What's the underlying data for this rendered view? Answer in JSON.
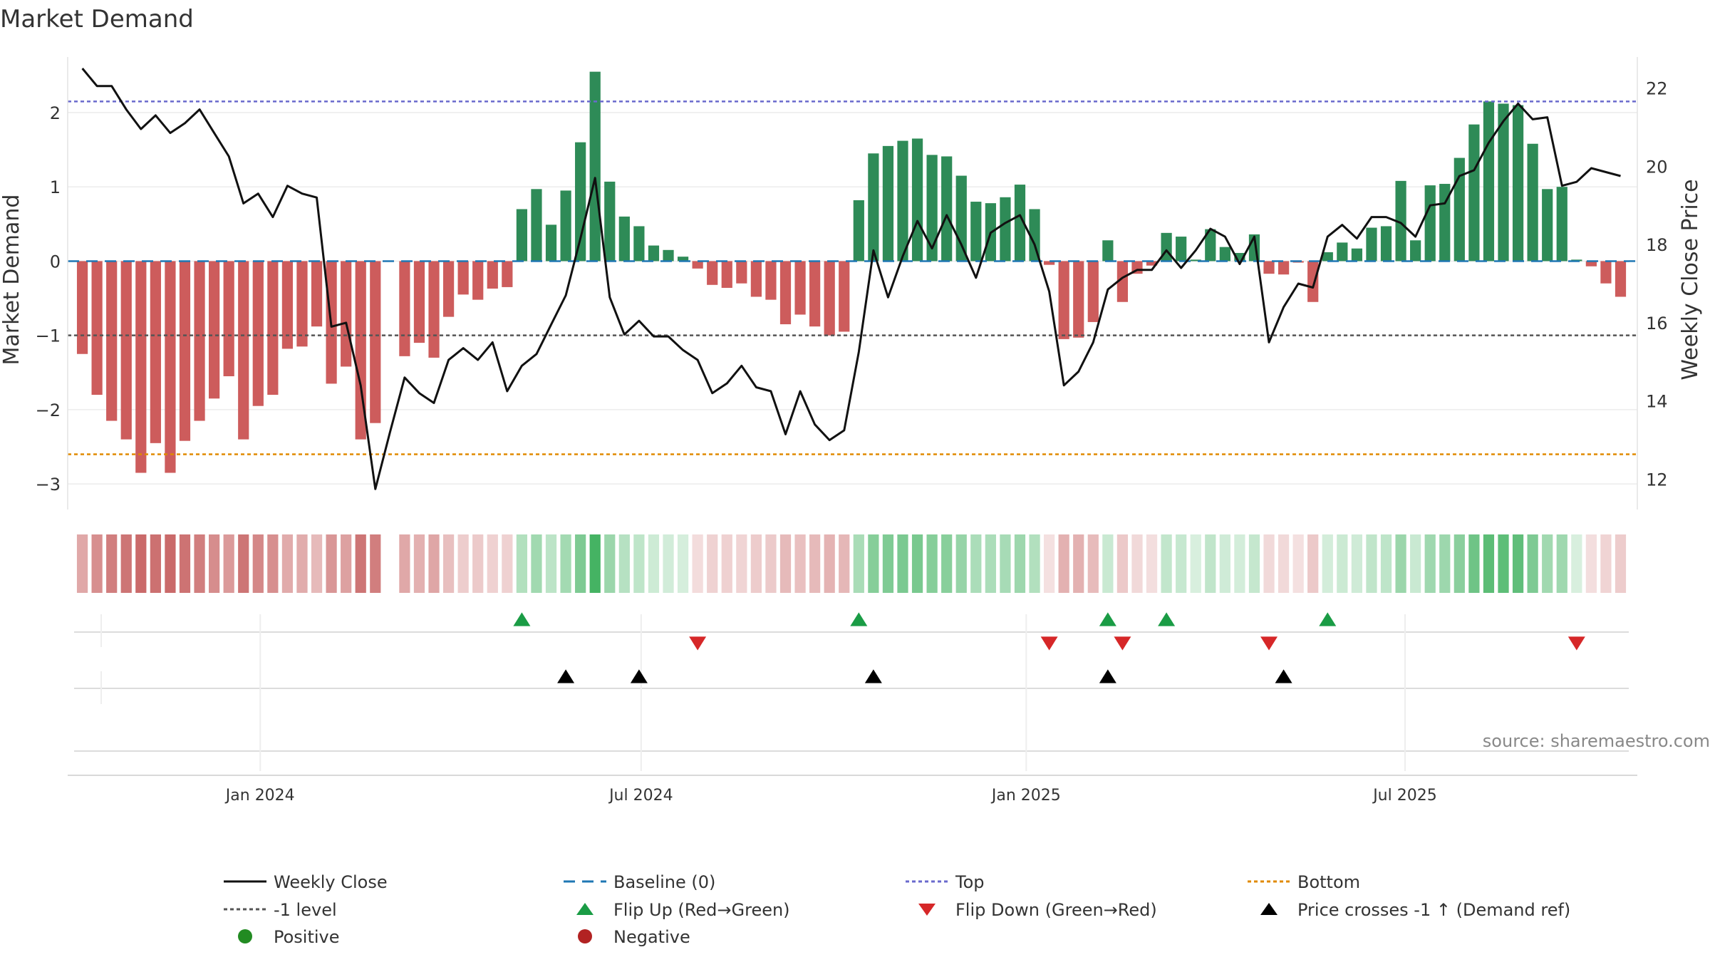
{
  "chart_data": {
    "type": "bar",
    "title": "Market Demand",
    "ylabel": "Market Demand",
    "y2label": "Weekly Close Price",
    "ylim": [
      -3.2,
      2.7
    ],
    "y2lim": [
      11.5,
      22.7
    ],
    "yticks": [
      2,
      1,
      0,
      -1,
      -2,
      -3
    ],
    "y2ticks": [
      22,
      20,
      18,
      16,
      14,
      12
    ],
    "x_range": [
      "2023-10-01",
      "2025-10-20"
    ],
    "x_start_date": "2023-10-08",
    "x_ticks": [
      {
        "date": "2024-01-01",
        "label": "Jan 2024"
      },
      {
        "date": "2024-07-01",
        "label": "Jul 2024"
      },
      {
        "date": "2025-01-01",
        "label": "Jan 2025"
      },
      {
        "date": "2025-07-01",
        "label": "Jul 2025"
      }
    ],
    "reference_lines": {
      "baseline": 0,
      "top": 2.15,
      "minus_one": -1,
      "bottom": -2.6
    },
    "colors": {
      "positive": "#2e8b57",
      "negative": "#cd5c5c",
      "price": "#111111",
      "baseline": "#1f77b4",
      "top": "#6a6acd",
      "bottom": "#e08a00",
      "minus_one": "#555555",
      "flip_up": "#1a9c45",
      "flip_down": "#d62728",
      "cross": "#000000"
    },
    "demand": [
      -1.25,
      -1.8,
      -2.15,
      -2.4,
      -2.85,
      -2.45,
      -2.85,
      -2.42,
      -2.15,
      -1.85,
      -1.55,
      -2.4,
      -1.95,
      -1.8,
      -1.18,
      -1.15,
      -0.88,
      -1.65,
      -1.42,
      -2.4,
      -2.18,
      null,
      -1.28,
      -1.1,
      -1.3,
      -0.75,
      -0.45,
      -0.52,
      -0.37,
      -0.35,
      0.7,
      0.97,
      0.49,
      0.95,
      1.6,
      2.55,
      1.07,
      0.6,
      0.47,
      0.21,
      0.15,
      0.06,
      -0.1,
      -0.32,
      -0.36,
      -0.3,
      -0.48,
      -0.52,
      -0.85,
      -0.72,
      -0.88,
      -1.0,
      -0.95,
      0.82,
      1.45,
      1.55,
      1.62,
      1.65,
      1.43,
      1.41,
      1.15,
      0.8,
      0.78,
      0.86,
      1.03,
      0.7,
      -0.05,
      -1.05,
      -1.03,
      -0.82,
      0.28,
      -0.55,
      -0.17,
      -0.06,
      0.38,
      0.33,
      0.02,
      0.43,
      0.19,
      0.11,
      0.36,
      -0.17,
      -0.18,
      -0.02,
      -0.55,
      0.12,
      0.25,
      0.17,
      0.45,
      0.47,
      1.08,
      0.28,
      1.02,
      1.04,
      1.39,
      1.84,
      2.15,
      2.12,
      2.1,
      1.58,
      0.97,
      1.0,
      0.02,
      -0.07,
      -0.3,
      -0.48
    ],
    "price": [
      22.5,
      22.05,
      22.05,
      21.45,
      20.95,
      21.3,
      20.85,
      21.1,
      21.45,
      20.85,
      20.25,
      19.05,
      19.3,
      18.7,
      19.5,
      19.3,
      19.2,
      15.9,
      16.0,
      14.4,
      11.75,
      13.2,
      14.6,
      14.2,
      13.95,
      15.05,
      15.35,
      15.05,
      15.5,
      14.25,
      14.9,
      15.2,
      15.95,
      16.7,
      18.15,
      19.7,
      16.65,
      15.7,
      16.05,
      15.65,
      15.65,
      15.3,
      15.05,
      14.2,
      14.45,
      14.9,
      14.35,
      14.25,
      13.15,
      14.25,
      13.4,
      13.0,
      13.25,
      15.25,
      17.85,
      16.65,
      17.7,
      18.6,
      17.9,
      18.75,
      18.0,
      17.15,
      18.3,
      18.55,
      18.75,
      18.0,
      16.8,
      14.4,
      14.75,
      15.5,
      16.85,
      17.15,
      17.35,
      17.35,
      17.85,
      17.4,
      17.85,
      18.4,
      18.2,
      17.5,
      18.2,
      15.5,
      16.4,
      17.0,
      16.9,
      18.2,
      18.5,
      18.15,
      18.7,
      18.7,
      18.55,
      18.2,
      19.0,
      19.05,
      19.75,
      19.9,
      20.6,
      21.15,
      21.6,
      21.2,
      21.25,
      19.5,
      19.6,
      19.95,
      19.85,
      19.75
    ],
    "flip_up_weeks": [
      30,
      53,
      70,
      74,
      85
    ],
    "flip_down_weeks": [
      42,
      66,
      71,
      81,
      102
    ],
    "cross_weeks": [
      33,
      38,
      54,
      70,
      82
    ],
    "legend": [
      {
        "label": "Weekly Close",
        "kind": "line",
        "color": "#111111",
        "dash": ""
      },
      {
        "label": "Baseline (0)",
        "kind": "line",
        "color": "#1f77b4",
        "dash": "16 10"
      },
      {
        "label": "Top",
        "kind": "line",
        "color": "#6a6acd",
        "dash": "5 4"
      },
      {
        "label": "Bottom",
        "kind": "line",
        "color": "#e08a00",
        "dash": "5 4"
      },
      {
        "label": "-1 level",
        "kind": "line",
        "color": "#555555",
        "dash": "5 4"
      },
      {
        "label": "Flip Up (Red→Green)",
        "kind": "tri-up",
        "color": "#1a9c45"
      },
      {
        "label": "Flip Down (Green→Red)",
        "kind": "tri-down",
        "color": "#d62728"
      },
      {
        "label": "Price crosses -1 ↑ (Demand ref)",
        "kind": "tri-up",
        "color": "#000000"
      },
      {
        "label": "Positive",
        "kind": "dot",
        "color": "#228b22"
      },
      {
        "label": "Negative",
        "kind": "dot",
        "color": "#b22222"
      }
    ],
    "source": "source: sharemaestro.com"
  }
}
